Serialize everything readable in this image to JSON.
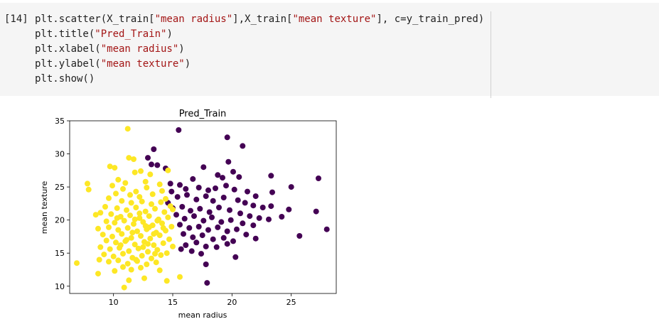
{
  "cell": {
    "execution_count": "[14]",
    "code_lines": [
      [
        "plt.scatter(X_train[",
        "\"mean radius\"",
        "],X_train[",
        "\"mean texture\"",
        "], c=y_train_pred)"
      ],
      [
        "plt.title(",
        "\"Pred_Train\"",
        ")"
      ],
      [
        "plt.xlabel(",
        "\"mean radius\"",
        ")"
      ],
      [
        "plt.ylabel(",
        "\"mean texture\"",
        ")"
      ],
      [
        "plt.show()"
      ]
    ]
  },
  "chart_data": {
    "type": "scatter",
    "title": "Pred_Train",
    "xlabel": "mean radius",
    "ylabel": "mean texture",
    "xlim": [
      6.3,
      28.8
    ],
    "ylim": [
      8.9,
      35.0
    ],
    "xticks": [
      10,
      15,
      20,
      25
    ],
    "yticks": [
      10,
      15,
      20,
      25,
      30,
      35
    ],
    "grid": false,
    "colors": {
      "class0": "#440154",
      "class1": "#fde725"
    },
    "series": [
      {
        "values_class": 0,
        "points": [
          [
            15.5,
            33.6
          ],
          [
            19.6,
            32.5
          ],
          [
            20.9,
            31.2
          ],
          [
            13.4,
            30.7
          ],
          [
            19.7,
            28.8
          ],
          [
            12.9,
            29.4
          ],
          [
            13.2,
            28.4
          ],
          [
            13.7,
            28.3
          ],
          [
            14.4,
            27.8
          ],
          [
            17.6,
            28.0
          ],
          [
            20.1,
            27.3
          ],
          [
            18.8,
            26.8
          ],
          [
            16.7,
            26.2
          ],
          [
            19.2,
            26.4
          ],
          [
            23.3,
            26.7
          ],
          [
            20.6,
            26.5
          ],
          [
            27.3,
            26.3
          ],
          [
            14.8,
            25.5
          ],
          [
            15.6,
            25.3
          ],
          [
            16.1,
            24.7
          ],
          [
            17.2,
            24.9
          ],
          [
            18.0,
            24.5
          ],
          [
            18.6,
            24.8
          ],
          [
            19.5,
            25.2
          ],
          [
            20.2,
            24.6
          ],
          [
            21.3,
            24.3
          ],
          [
            22.0,
            23.6
          ],
          [
            23.4,
            24.2
          ],
          [
            25.0,
            25.0
          ],
          [
            14.9,
            24.3
          ],
          [
            15.4,
            23.5
          ],
          [
            16.2,
            23.8
          ],
          [
            17.0,
            23.1
          ],
          [
            17.8,
            23.6
          ],
          [
            18.4,
            22.9
          ],
          [
            19.3,
            23.4
          ],
          [
            20.5,
            23.0
          ],
          [
            21.1,
            22.6
          ],
          [
            21.8,
            22.2
          ],
          [
            22.6,
            21.9
          ],
          [
            23.3,
            22.1
          ],
          [
            24.8,
            21.6
          ],
          [
            27.1,
            21.3
          ],
          [
            14.6,
            22.6
          ],
          [
            15.0,
            21.8
          ],
          [
            15.8,
            22.0
          ],
          [
            16.5,
            21.4
          ],
          [
            17.3,
            21.7
          ],
          [
            18.1,
            21.2
          ],
          [
            18.9,
            21.9
          ],
          [
            19.8,
            21.5
          ],
          [
            20.7,
            21.0
          ],
          [
            21.5,
            20.6
          ],
          [
            22.3,
            20.3
          ],
          [
            23.1,
            20.1
          ],
          [
            24.2,
            20.5
          ],
          [
            28.0,
            18.6
          ],
          [
            15.3,
            20.8
          ],
          [
            16.0,
            20.2
          ],
          [
            16.8,
            20.6
          ],
          [
            17.6,
            19.9
          ],
          [
            18.3,
            20.4
          ],
          [
            19.1,
            19.7
          ],
          [
            19.9,
            20.0
          ],
          [
            20.9,
            19.5
          ],
          [
            21.8,
            19.2
          ],
          [
            15.6,
            19.3
          ],
          [
            16.4,
            18.8
          ],
          [
            17.2,
            19.0
          ],
          [
            18.0,
            18.5
          ],
          [
            18.8,
            18.9
          ],
          [
            19.6,
            18.3
          ],
          [
            20.4,
            18.6
          ],
          [
            21.2,
            17.8
          ],
          [
            25.7,
            17.6
          ],
          [
            15.9,
            17.9
          ],
          [
            16.7,
            17.4
          ],
          [
            17.5,
            17.7
          ],
          [
            18.4,
            17.1
          ],
          [
            19.3,
            17.3
          ],
          [
            20.1,
            16.8
          ],
          [
            22.0,
            17.2
          ],
          [
            16.1,
            16.2
          ],
          [
            17.0,
            16.6
          ],
          [
            17.8,
            16.0
          ],
          [
            18.7,
            15.9
          ],
          [
            19.6,
            16.4
          ],
          [
            15.7,
            15.6
          ],
          [
            16.6,
            15.3
          ],
          [
            17.4,
            14.9
          ],
          [
            20.3,
            14.4
          ],
          [
            17.8,
            13.3
          ],
          [
            17.9,
            10.5
          ]
        ]
      },
      {
        "values_class": 1,
        "points": [
          [
            11.2,
            33.8
          ],
          [
            11.3,
            29.4
          ],
          [
            11.7,
            29.2
          ],
          [
            9.7,
            28.1
          ],
          [
            10.1,
            27.9
          ],
          [
            12.3,
            27.4
          ],
          [
            11.8,
            27.2
          ],
          [
            14.6,
            27.5
          ],
          [
            13.1,
            26.9
          ],
          [
            7.8,
            25.5
          ],
          [
            10.4,
            26.1
          ],
          [
            12.7,
            25.8
          ],
          [
            9.9,
            25.2
          ],
          [
            11.0,
            25.6
          ],
          [
            13.9,
            25.4
          ],
          [
            7.9,
            24.6
          ],
          [
            10.8,
            24.7
          ],
          [
            11.9,
            24.3
          ],
          [
            12.8,
            24.9
          ],
          [
            14.1,
            24.4
          ],
          [
            10.2,
            24.0
          ],
          [
            11.4,
            23.8
          ],
          [
            12.2,
            23.5
          ],
          [
            13.3,
            23.9
          ],
          [
            14.4,
            23.2
          ],
          [
            9.6,
            23.3
          ],
          [
            10.7,
            22.9
          ],
          [
            11.5,
            22.6
          ],
          [
            12.4,
            22.8
          ],
          [
            13.2,
            22.4
          ],
          [
            14.0,
            22.7
          ],
          [
            14.8,
            22.1
          ],
          [
            9.3,
            22.0
          ],
          [
            10.3,
            21.8
          ],
          [
            11.1,
            21.5
          ],
          [
            11.9,
            21.9
          ],
          [
            12.7,
            21.3
          ],
          [
            13.5,
            21.7
          ],
          [
            14.3,
            21.2
          ],
          [
            15.0,
            21.6
          ],
          [
            8.5,
            20.8
          ],
          [
            8.9,
            21.1
          ],
          [
            9.8,
            20.9
          ],
          [
            10.6,
            20.5
          ],
          [
            11.4,
            20.7
          ],
          [
            12.2,
            20.3
          ],
          [
            13.0,
            20.6
          ],
          [
            13.8,
            20.1
          ],
          [
            14.6,
            20.4
          ],
          [
            9.4,
            19.8
          ],
          [
            10.1,
            19.6
          ],
          [
            10.9,
            19.9
          ],
          [
            11.7,
            19.4
          ],
          [
            12.5,
            19.7
          ],
          [
            13.3,
            19.2
          ],
          [
            14.1,
            19.5
          ],
          [
            14.9,
            19.0
          ],
          [
            8.7,
            18.7
          ],
          [
            9.6,
            18.9
          ],
          [
            10.4,
            18.5
          ],
          [
            11.2,
            18.8
          ],
          [
            12.0,
            18.3
          ],
          [
            12.8,
            18.6
          ],
          [
            13.6,
            18.1
          ],
          [
            14.4,
            18.4
          ],
          [
            9.1,
            17.8
          ],
          [
            9.9,
            17.5
          ],
          [
            10.7,
            17.9
          ],
          [
            11.5,
            17.3
          ],
          [
            12.3,
            17.6
          ],
          [
            13.1,
            17.2
          ],
          [
            13.9,
            17.7
          ],
          [
            14.7,
            17.1
          ],
          [
            9.4,
            16.9
          ],
          [
            10.2,
            16.6
          ],
          [
            11.0,
            16.8
          ],
          [
            11.8,
            16.3
          ],
          [
            12.6,
            16.7
          ],
          [
            13.4,
            16.2
          ],
          [
            14.2,
            16.5
          ],
          [
            15.0,
            16.0
          ],
          [
            8.9,
            15.9
          ],
          [
            9.7,
            15.6
          ],
          [
            10.5,
            15.8
          ],
          [
            11.3,
            15.3
          ],
          [
            12.1,
            15.7
          ],
          [
            12.9,
            15.2
          ],
          [
            13.7,
            15.5
          ],
          [
            14.5,
            15.0
          ],
          [
            9.2,
            14.8
          ],
          [
            10.0,
            14.5
          ],
          [
            10.8,
            14.9
          ],
          [
            11.6,
            14.3
          ],
          [
            12.4,
            14.6
          ],
          [
            13.2,
            14.2
          ],
          [
            14.0,
            14.7
          ],
          [
            8.8,
            14.0
          ],
          [
            9.6,
            13.7
          ],
          [
            10.4,
            13.9
          ],
          [
            11.2,
            13.4
          ],
          [
            12.0,
            13.8
          ],
          [
            12.8,
            13.3
          ],
          [
            13.6,
            13.6
          ],
          [
            6.9,
            13.5
          ],
          [
            10.8,
            12.9
          ],
          [
            11.5,
            12.5
          ],
          [
            12.3,
            12.8
          ],
          [
            13.9,
            12.4
          ],
          [
            10.1,
            12.3
          ],
          [
            8.7,
            11.9
          ],
          [
            15.6,
            11.4
          ],
          [
            11.3,
            10.9
          ],
          [
            14.5,
            10.8
          ],
          [
            10.9,
            9.8
          ],
          [
            12.6,
            11.2
          ],
          [
            11.8,
            20.1
          ],
          [
            12.5,
            15.9
          ],
          [
            13.0,
            18.9
          ],
          [
            11.1,
            17.0
          ],
          [
            13.7,
            19.9
          ],
          [
            12.2,
            21.0
          ],
          [
            10.6,
            16.2
          ],
          [
            11.9,
            14.0
          ],
          [
            12.9,
            16.4
          ],
          [
            13.5,
            14.9
          ],
          [
            10.3,
            20.3
          ],
          [
            11.6,
            18.1
          ],
          [
            12.7,
            19.1
          ],
          [
            13.4,
            17.9
          ],
          [
            14.2,
            18.8
          ]
        ]
      }
    ]
  }
}
